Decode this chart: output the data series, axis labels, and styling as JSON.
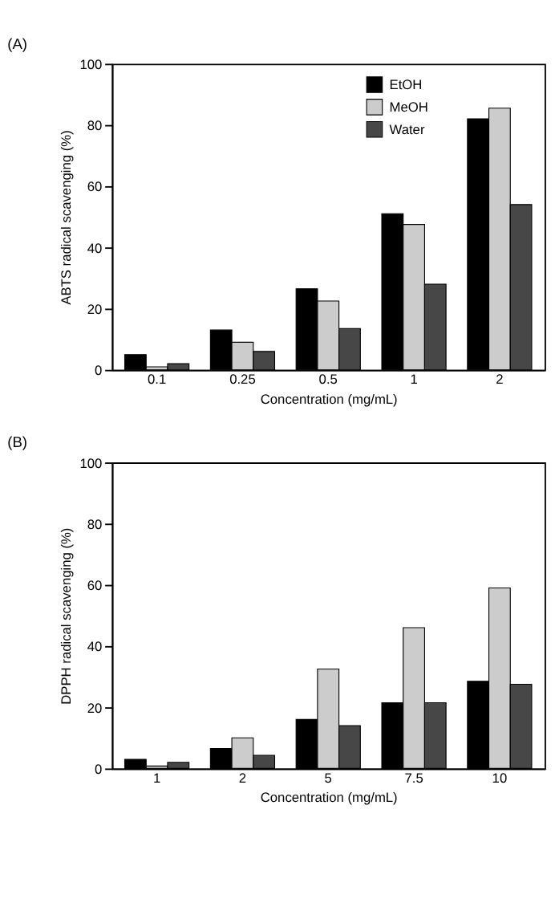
{
  "chart_data": [
    {
      "type": "bar",
      "title": "(A)",
      "xlabel": "Concentration (mg/mL)",
      "ylabel": "ABTS radical scavenging (%)",
      "categories": [
        "0.1",
        "0.25",
        "0.5",
        "1",
        "2"
      ],
      "ylim": [
        0,
        100
      ],
      "yticks": [
        0,
        20,
        40,
        60,
        80,
        100
      ],
      "grid": false,
      "legend": "top right",
      "series": [
        {
          "name": "EtOH",
          "color": "#000000",
          "values": [
            5,
            13,
            26.5,
            51,
            82
          ]
        },
        {
          "name": "MeOH",
          "color": "#cccccc",
          "values": [
            1,
            9,
            22.5,
            47.5,
            85.5
          ]
        },
        {
          "name": "Water",
          "color": "#474747",
          "values": [
            2,
            6,
            13.5,
            28,
            54
          ]
        }
      ]
    },
    {
      "type": "bar",
      "title": "(B)",
      "xlabel": "Concentration (mg/mL)",
      "ylabel": "DPPH radical scavenging (%)",
      "categories": [
        "1",
        "2",
        "5",
        "7.5",
        "10"
      ],
      "ylim": [
        0,
        100
      ],
      "yticks": [
        0,
        20,
        40,
        60,
        80,
        100
      ],
      "grid": false,
      "legend": "top right",
      "series": [
        {
          "name": "EtOH",
          "color": "#000000",
          "values": [
            3,
            6.5,
            16,
            21.5,
            28.5
          ]
        },
        {
          "name": "MeOH",
          "color": "#cccccc",
          "values": [
            0.8,
            10,
            32.5,
            46,
            59
          ]
        },
        {
          "name": "Water",
          "color": "#474747",
          "values": [
            2,
            4.3,
            14,
            21.5,
            27.5
          ]
        }
      ]
    }
  ]
}
